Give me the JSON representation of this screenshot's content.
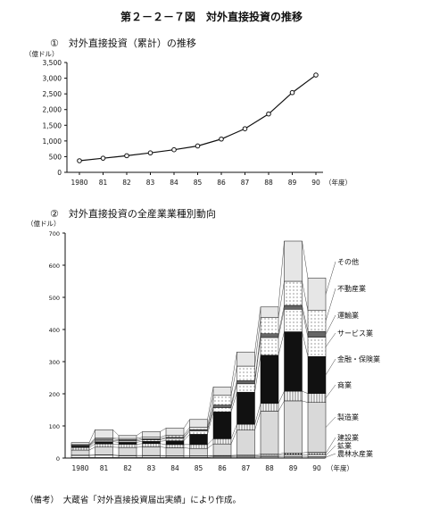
{
  "figure_title": "第２－２－７図　対外直接投資の推移",
  "note": "（備考）　大蔵省「対外直接投資届出実績」により作成。",
  "chart_data": [
    {
      "type": "line",
      "title": "①　対外直接投資（累計）の推移",
      "ylabel": "（億ドル）",
      "xlabel": "（年度）",
      "x": [
        "1980",
        "81",
        "82",
        "83",
        "84",
        "85",
        "86",
        "87",
        "88",
        "89",
        "90"
      ],
      "values": [
        370,
        450,
        530,
        620,
        720,
        840,
        1060,
        1390,
        1860,
        2540,
        3100
      ],
      "ylim": [
        0,
        3500
      ],
      "yticks": [
        "0",
        "500",
        "1,000",
        "1,500",
        "2,000",
        "2,500",
        "3,000",
        "3,500"
      ],
      "grid": false
    },
    {
      "type": "bar",
      "stacked": true,
      "title": "②　対外直接投資の全産業業種別動向",
      "ylabel": "（億ドル）",
      "xlabel": "（年度）",
      "categories": [
        "1980",
        "81",
        "82",
        "83",
        "84",
        "85",
        "86",
        "87",
        "88",
        "89",
        "90"
      ],
      "ylim": [
        0,
        700
      ],
      "yticks": [
        "0",
        "100",
        "200",
        "300",
        "400",
        "500",
        "600",
        "700"
      ],
      "legend_placement": "right",
      "series": [
        {
          "name": "農林水産業",
          "values": [
            2,
            2,
            2,
            2,
            2,
            2,
            3,
            3,
            4,
            5,
            5
          ],
          "color": "#9a9a9a"
        },
        {
          "name": "鉱業",
          "values": [
            6,
            7,
            5,
            5,
            4,
            4,
            3,
            3,
            4,
            5,
            6
          ],
          "color": "#ffffff"
        },
        {
          "name": "建設業",
          "values": [
            1,
            1,
            1,
            1,
            1,
            1,
            2,
            3,
            4,
            6,
            7
          ],
          "color": "#bdbdbd"
        },
        {
          "name": "製造業",
          "values": [
            16,
            24,
            25,
            27,
            25,
            23,
            36,
            78,
            134,
            162,
            155
          ],
          "color": "#d9d9d9"
        },
        {
          "name": "商業",
          "values": [
            8,
            10,
            10,
            10,
            10,
            12,
            16,
            18,
            24,
            30,
            28
          ],
          "color": "#ffffff"
        },
        {
          "name": "金融・保険業",
          "values": [
            4,
            7,
            6,
            7,
            12,
            32,
            84,
            100,
            150,
            185,
            115
          ],
          "color": "#111111"
        },
        {
          "name": "サービス業",
          "values": [
            2,
            4,
            4,
            5,
            7,
            10,
            13,
            26,
            55,
            70,
            60
          ],
          "color": "#f2f2f2"
        },
        {
          "name": "運輸業",
          "values": [
            1,
            4,
            4,
            3,
            4,
            5,
            8,
            10,
            12,
            12,
            18
          ],
          "color": "#666666"
        },
        {
          "name": "不動産業",
          "values": [
            2,
            3,
            4,
            5,
            6,
            7,
            30,
            45,
            50,
            75,
            65
          ],
          "color": "#ffffff"
        },
        {
          "name": "その他",
          "values": [
            6,
            26,
            9,
            17,
            22,
            24,
            26,
            44,
            33,
            125,
            101
          ],
          "color": "#e6e6e6"
        }
      ]
    }
  ]
}
